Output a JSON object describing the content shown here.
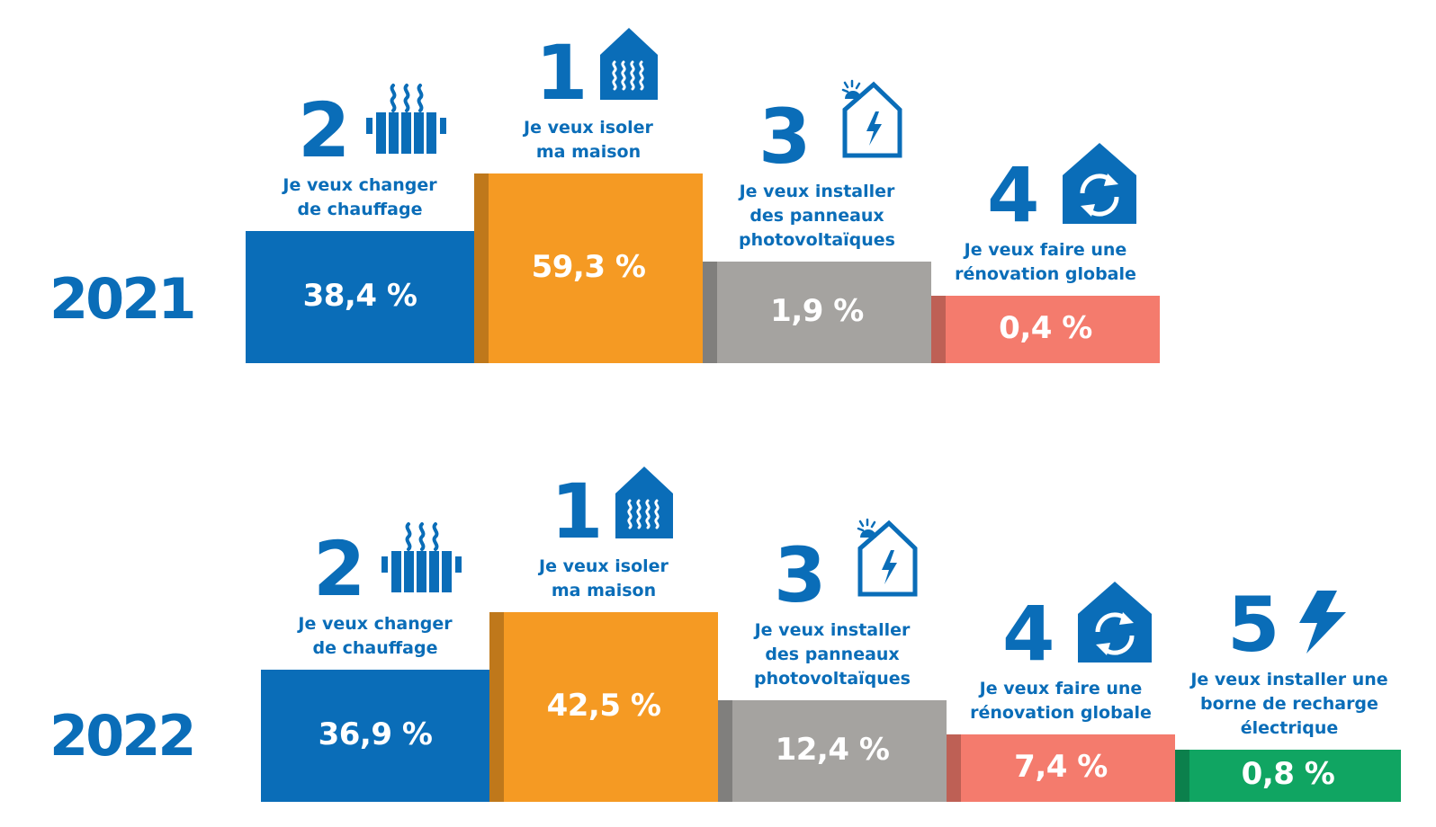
{
  "colors": {
    "blue": "#0a6db8",
    "orange": "#f59a23",
    "gray": "#a5a3a0",
    "salmon": "#f47b6d",
    "green": "#10a562"
  },
  "chart_data": [
    {
      "type": "bar",
      "title": "2021",
      "categories": [
        "Je veux changer de chauffage",
        "Je veux isoler ma maison",
        "Je veux installer des panneaux photovoltaïques",
        "Je veux faire une rénovation globale"
      ],
      "values": [
        38.4,
        59.3,
        1.9,
        0.4
      ],
      "value_labels": [
        "38,4 %",
        "59,3 %",
        "1,9 %",
        "0,4 %"
      ],
      "ranks": [
        "2",
        "1",
        "3",
        "4"
      ],
      "label_lines": [
        [
          "Je veux changer",
          "de chauffage"
        ],
        [
          "Je veux isoler",
          "ma maison"
        ],
        [
          "Je veux installer",
          "des panneaux",
          "photovoltaïques"
        ],
        [
          "Je veux faire une",
          "rénovation globale"
        ]
      ],
      "icons": [
        "radiator-icon",
        "insulated-house-icon",
        "solar-house-icon",
        "renovation-house-icon"
      ],
      "bar_colors": [
        "blue",
        "orange",
        "gray",
        "salmon"
      ],
      "step_heights": [
        4,
        5,
        3,
        2
      ]
    },
    {
      "type": "bar",
      "title": "2022",
      "categories": [
        "Je veux changer de chauffage",
        "Je veux isoler ma maison",
        "Je veux installer des panneaux photovoltaïques",
        "Je veux faire une rénovation globale",
        "Je veux installer une borne de recharge électrique"
      ],
      "values": [
        36.9,
        42.5,
        12.4,
        7.4,
        0.8
      ],
      "value_labels": [
        "36,9 %",
        "42,5 %",
        "12,4 %",
        "7,4 %",
        "0,8 %"
      ],
      "ranks": [
        "2",
        "1",
        "3",
        "4",
        "5"
      ],
      "label_lines": [
        [
          "Je veux changer",
          "de chauffage"
        ],
        [
          "Je veux isoler",
          "ma maison"
        ],
        [
          "Je veux installer",
          "des panneaux",
          "photovoltaïques"
        ],
        [
          "Je veux faire une",
          "rénovation globale"
        ],
        [
          "Je veux installer une",
          "borne de recharge",
          "électrique"
        ]
      ],
      "icons": [
        "radiator-icon",
        "insulated-house-icon",
        "solar-house-icon",
        "renovation-house-icon",
        "lightning-icon"
      ],
      "bar_colors": [
        "blue",
        "orange",
        "gray",
        "salmon",
        "green"
      ],
      "step_heights": [
        4,
        5,
        3,
        2,
        1
      ]
    }
  ]
}
